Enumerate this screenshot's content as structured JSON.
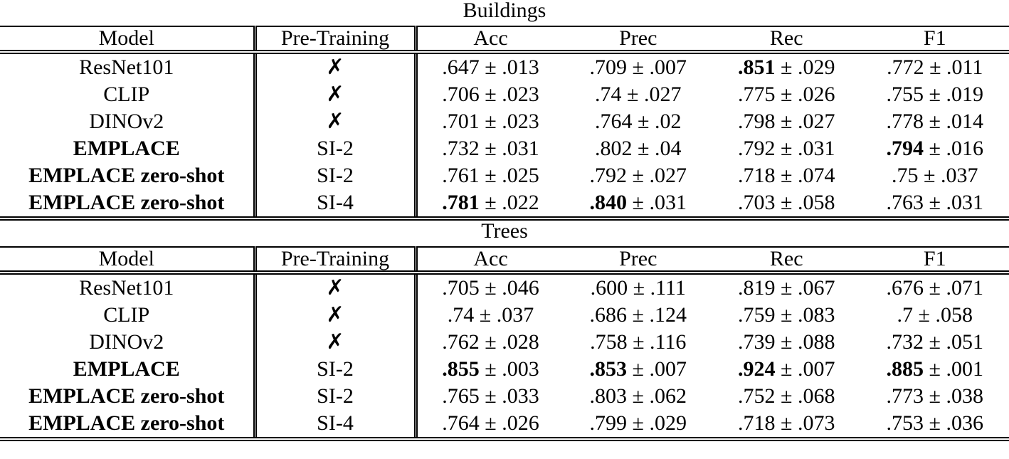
{
  "sections": [
    {
      "title": "Buildings",
      "header": [
        "Model",
        "Pre-Training",
        "Acc",
        "Prec",
        "Rec",
        "F1"
      ],
      "rows": [
        {
          "cells": [
            "ResNet101",
            "✗",
            ".647 ± .013",
            ".709 ± .007",
            ".851 ± .029",
            ".772 ± .011"
          ],
          "bold": [
            false,
            false,
            false,
            false,
            true,
            false
          ]
        },
        {
          "cells": [
            "CLIP",
            "✗",
            ".706 ± .023",
            ".74 ± .027",
            ".775 ± .026",
            ".755 ± .019"
          ],
          "bold": [
            false,
            false,
            false,
            false,
            false,
            false
          ]
        },
        {
          "cells": [
            "DINOv2",
            "✗",
            ".701 ± .023",
            ".764 ± .02",
            ".798 ± .027",
            ".778 ± .014"
          ],
          "bold": [
            false,
            false,
            false,
            false,
            false,
            false
          ]
        },
        {
          "cells": [
            "EMPLACE",
            "SI-2",
            ".732 ± .031",
            ".802 ± .04",
            ".792 ± .031",
            ".794 ± .016"
          ],
          "bold": [
            true,
            false,
            false,
            false,
            false,
            true
          ]
        },
        {
          "cells": [
            "EMPLACE zero-shot",
            "SI-2",
            ".761 ± .025",
            ".792 ± .027",
            ".718 ± .074",
            ".75 ± .037"
          ],
          "bold": [
            true,
            false,
            false,
            false,
            false,
            false
          ]
        },
        {
          "cells": [
            "EMPLACE zero-shot",
            "SI-4",
            ".781 ± .022",
            ".840 ± .031",
            ".703 ± .058",
            ".763 ± .031"
          ],
          "bold": [
            true,
            false,
            true,
            true,
            false,
            false
          ]
        }
      ]
    },
    {
      "title": "Trees",
      "header": [
        "Model",
        "Pre-Training",
        "Acc",
        "Prec",
        "Rec",
        "F1"
      ],
      "rows": [
        {
          "cells": [
            "ResNet101",
            "✗",
            ".705 ± .046",
            ".600 ± .111",
            ".819 ± .067",
            ".676 ± .071"
          ],
          "bold": [
            false,
            false,
            false,
            false,
            false,
            false
          ]
        },
        {
          "cells": [
            "CLIP",
            "✗",
            ".74 ± .037",
            ".686 ± .124",
            ".759 ± .083",
            ".7 ± .058"
          ],
          "bold": [
            false,
            false,
            false,
            false,
            false,
            false
          ]
        },
        {
          "cells": [
            "DINOv2",
            "✗",
            ".762 ± .028",
            ".758 ± .116",
            ".739 ± .088",
            ".732 ± .051"
          ],
          "bold": [
            false,
            false,
            false,
            false,
            false,
            false
          ]
        },
        {
          "cells": [
            "EMPLACE",
            "SI-2",
            ".855 ± .003",
            ".853 ± .007",
            ".924 ± .007",
            ".885 ± .001"
          ],
          "bold": [
            true,
            false,
            true,
            true,
            true,
            true
          ]
        },
        {
          "cells": [
            "EMPLACE zero-shot",
            "SI-2",
            ".765 ± .033",
            ".803 ± .062",
            ".752 ± .068",
            ".773 ± .038"
          ],
          "bold": [
            true,
            false,
            false,
            false,
            false,
            false
          ]
        },
        {
          "cells": [
            "EMPLACE zero-shot",
            "SI-4",
            ".764 ± .026",
            ".799 ± .029",
            ".718 ± .073",
            ".753 ± .036"
          ],
          "bold": [
            true,
            false,
            false,
            false,
            false,
            false
          ]
        }
      ]
    }
  ]
}
